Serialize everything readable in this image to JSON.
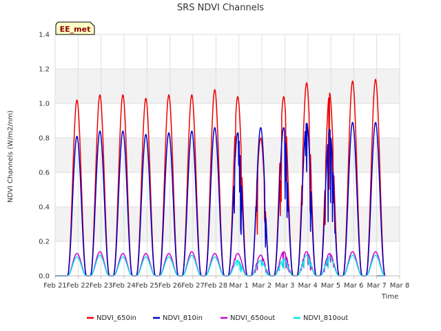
{
  "chart_data": {
    "type": "line",
    "title": "SRS NDVI Channels",
    "xlabel": "Time",
    "ylabel": "NDVI Channels (W/m2/nm)",
    "ylim": [
      0,
      1.4
    ],
    "yticks": [
      "0.0",
      "0.2",
      "0.4",
      "0.6",
      "0.8",
      "1.0",
      "1.2",
      "1.4"
    ],
    "xlim_days": [
      0,
      15
    ],
    "xticks": [
      "Feb 21",
      "Feb 22",
      "Feb 23",
      "Feb 24",
      "Feb 25",
      "Feb 26",
      "Feb 27",
      "Feb 28",
      "Mar 1",
      "Mar 2",
      "Mar 3",
      "Mar 4",
      "Mar 5",
      "Mar 6",
      "Mar 7",
      "Mar 8"
    ],
    "grid": true,
    "legend_position": "bottom",
    "station_badge": "EE_met",
    "daily_peak_day_offsets": [
      0.95,
      1.95,
      2.95,
      3.95,
      4.95,
      5.95,
      6.95,
      7.95,
      8.95,
      9.95,
      10.95,
      11.95,
      12.95,
      13.95
    ],
    "series": [
      {
        "name": "NDVI_650in",
        "color": "#ee0000",
        "daily_peaks": [
          1.02,
          1.05,
          1.05,
          1.03,
          1.05,
          1.05,
          1.08,
          1.04,
          0.8,
          1.04,
          1.12,
          1.06,
          1.13,
          1.14
        ]
      },
      {
        "name": "NDVI_810in",
        "color": "#0000cc",
        "daily_peaks": [
          0.81,
          0.84,
          0.84,
          0.82,
          0.83,
          0.84,
          0.86,
          0.83,
          0.86,
          0.86,
          0.89,
          0.85,
          0.89,
          0.89
        ]
      },
      {
        "name": "NDVI_650out",
        "color": "#cc00cc",
        "daily_peaks": [
          0.13,
          0.14,
          0.13,
          0.13,
          0.13,
          0.14,
          0.13,
          0.13,
          0.12,
          0.14,
          0.14,
          0.13,
          0.14,
          0.14
        ]
      },
      {
        "name": "NDVI_810out",
        "color": "#00e5e5",
        "daily_peaks": [
          0.11,
          0.12,
          0.11,
          0.11,
          0.11,
          0.12,
          0.11,
          0.09,
          0.09,
          0.1,
          0.12,
          0.11,
          0.12,
          0.12
        ]
      }
    ]
  }
}
